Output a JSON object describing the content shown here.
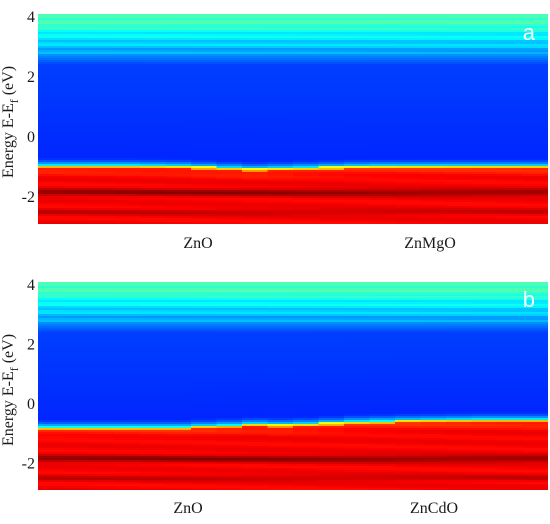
{
  "chart_data": [
    {
      "type": "heatmap",
      "panel_label": "a",
      "ylabel_main": "Energy E-E",
      "ylabel_sub": "f",
      "ylabel_unit": " (eV)",
      "categories": [
        "ZnO",
        "ZnMgO"
      ],
      "y_ticks": [
        4,
        2,
        0,
        -2
      ],
      "ylim": [
        -2.9,
        4.1
      ],
      "grid": false,
      "band_edges": {
        "conduction_band_min": 2.75,
        "valence_band_max": [
          -0.95,
          -0.95,
          -0.95,
          -0.95,
          -0.96,
          -0.97,
          -1.0,
          -1.03,
          -1.06,
          -1.04,
          -1.02,
          -1.0,
          -0.98,
          -0.97,
          -0.97,
          -0.97,
          -0.97,
          -0.97,
          -0.97,
          -0.97
        ],
        "deep_valence_peak": -1.85
      },
      "colormap": "jet"
    },
    {
      "type": "heatmap",
      "panel_label": "b",
      "ylabel_main": "Energy E-E",
      "ylabel_sub": "f",
      "ylabel_unit": " (eV)",
      "categories": [
        "ZnO",
        "ZnCdO"
      ],
      "y_ticks": [
        4,
        2,
        0,
        -2
      ],
      "ylim": [
        -2.9,
        4.1
      ],
      "grid": false,
      "band_edges": {
        "conduction_band_min": 2.75,
        "valence_band_max": [
          -0.78,
          -0.78,
          -0.78,
          -0.78,
          -0.78,
          -0.78,
          -0.75,
          -0.72,
          -0.68,
          -0.7,
          -0.68,
          -0.64,
          -0.6,
          -0.58,
          -0.56,
          -0.55,
          -0.54,
          -0.53,
          -0.53,
          -0.53
        ],
        "deep_valence_peak": -1.85
      },
      "colormap": "jet"
    }
  ]
}
